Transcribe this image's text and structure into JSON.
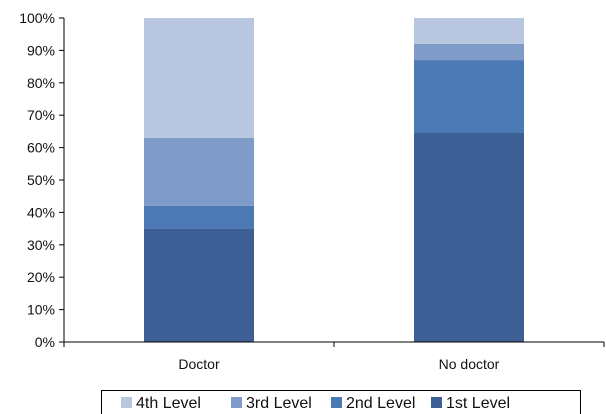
{
  "chart_data": {
    "type": "bar",
    "stacked": true,
    "normalized": true,
    "categories": [
      "Doctor",
      "No doctor"
    ],
    "series": [
      {
        "name": "1st Level",
        "color": "#3d5f95",
        "values": [
          35,
          64.5
        ]
      },
      {
        "name": "2nd Level",
        "color": "#4a79b3",
        "values": [
          7,
          22.5
        ]
      },
      {
        "name": "3rd Level",
        "color": "#7f9bc8",
        "values": [
          21,
          5
        ]
      },
      {
        "name": "4th Level",
        "color": "#b8c6e0",
        "values": [
          37,
          8
        ]
      }
    ],
    "ylim": [
      0,
      100
    ],
    "yticks": [
      "0%",
      "10%",
      "20%",
      "30%",
      "40%",
      "50%",
      "60%",
      "70%",
      "80%",
      "90%",
      "100%"
    ],
    "grid": false,
    "legend": {
      "position": "bottom",
      "order": [
        "4th Level",
        "3rd Level",
        "2nd Level",
        "1st Level"
      ]
    }
  }
}
